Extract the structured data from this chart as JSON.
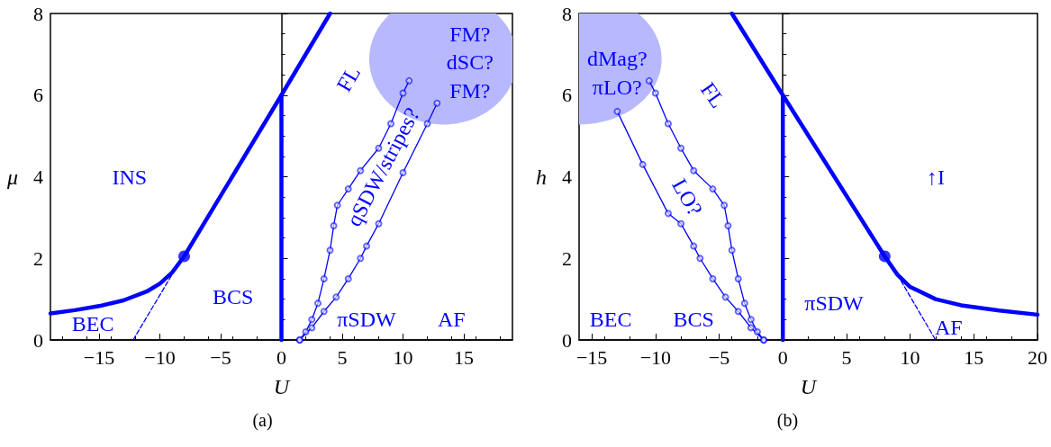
{
  "chart_data": [
    {
      "type": "line",
      "title": "(a)",
      "xlabel": "U",
      "ylabel": "μ",
      "xlim": [
        -19,
        19
      ],
      "ylim": [
        0,
        8
      ],
      "xticks": [
        -15,
        -10,
        -5,
        0,
        5,
        10,
        15
      ],
      "yticks": [
        0,
        2,
        4,
        6,
        8
      ],
      "grid": false,
      "series": [
        {
          "color": "#0000ff",
          "line_style": "solid",
          "x": [
            -19,
            -17,
            -15,
            -13,
            -11,
            -10,
            -9,
            -8,
            0,
            4
          ],
          "values": [
            0.65,
            0.73,
            0.83,
            0.97,
            1.2,
            1.38,
            1.65,
            2.05,
            6,
            8
          ]
        },
        {
          "color": "#0000ff",
          "line_style": "dashed",
          "x": [
            -12.2,
            -9
          ],
          "values": [
            0,
            1.6
          ]
        },
        {
          "color": "#0000ff",
          "line_style": "solid",
          "x": [
            0,
            0
          ],
          "values": [
            0,
            6
          ]
        },
        {
          "color": "#0000ff",
          "line_style": "solid",
          "marker": "circle",
          "x": [
            1.5,
            2,
            2.5,
            3,
            3.5,
            4,
            4.3,
            4.6,
            5.5,
            6.5,
            8,
            9,
            10,
            10.5
          ],
          "values": [
            0,
            0.2,
            0.5,
            0.9,
            1.5,
            2.2,
            2.8,
            3.3,
            3.7,
            4.15,
            4.7,
            5.3,
            6.05,
            6.35
          ]
        },
        {
          "color": "#0000ff",
          "line_style": "solid",
          "marker": "circle",
          "x": [
            1.5,
            2.5,
            3.5,
            4.5,
            5.5,
            6.5,
            7,
            8,
            10,
            12,
            12.8
          ],
          "values": [
            0,
            0.3,
            0.7,
            1.05,
            1.5,
            2.0,
            2.3,
            2.85,
            4.1,
            5.3,
            5.8
          ]
        },
        {
          "color": "#0000ff",
          "type": "scatter",
          "marker": "circle",
          "x": [
            -8
          ],
          "values": [
            2.05
          ]
        }
      ],
      "annotations": [
        "INS",
        "BEC",
        "BCS",
        "πSDW",
        "AF",
        "FL",
        "qSDW/stripes?",
        "FM?",
        "dSC?",
        "FM?"
      ]
    },
    {
      "type": "line",
      "title": "(b)",
      "xlabel": "U",
      "ylabel": "h",
      "xlim": [
        -16,
        20
      ],
      "ylim": [
        0,
        8
      ],
      "xticks": [
        -15,
        -10,
        -5,
        0,
        5,
        10,
        15,
        20
      ],
      "yticks": [
        0,
        2,
        4,
        6,
        8
      ],
      "grid": false,
      "series": [
        {
          "color": "#0000ff",
          "line_style": "solid",
          "x": [
            -4,
            0,
            8,
            9,
            10,
            12,
            14,
            17,
            20
          ],
          "values": [
            8,
            6,
            2.05,
            1.6,
            1.3,
            1.0,
            0.85,
            0.72,
            0.62
          ]
        },
        {
          "color": "#0000ff",
          "line_style": "dashed",
          "x": [
            9,
            12
          ],
          "values": [
            1.6,
            0
          ]
        },
        {
          "color": "#0000ff",
          "line_style": "solid",
          "x": [
            0,
            0
          ],
          "values": [
            0,
            6
          ]
        },
        {
          "color": "#0000ff",
          "line_style": "solid",
          "marker": "circle",
          "x": [
            -10.5,
            -10,
            -9,
            -8,
            -7,
            -5.5,
            -4.6,
            -4.3,
            -4,
            -3.5,
            -3,
            -2.5,
            -2,
            -1.5
          ],
          "values": [
            6.35,
            6.05,
            5.3,
            4.7,
            4.15,
            3.7,
            3.3,
            2.8,
            2.2,
            1.5,
            0.9,
            0.5,
            0.2,
            0
          ]
        },
        {
          "color": "#0000ff",
          "line_style": "solid",
          "marker": "circle",
          "x": [
            -13,
            -11,
            -9,
            -8,
            -7,
            -6.5,
            -5.5,
            -4.5,
            -3.5,
            -2.5,
            -1.5
          ],
          "values": [
            5.6,
            4.3,
            3.1,
            2.85,
            2.3,
            2.0,
            1.5,
            1.05,
            0.7,
            0.3,
            0
          ]
        },
        {
          "color": "#0000ff",
          "type": "scatter",
          "marker": "circle",
          "x": [
            8
          ],
          "values": [
            2.05
          ]
        }
      ],
      "annotations": [
        "dMag?",
        "πLO?",
        "FL",
        "LO?",
        "↑I",
        "BEC",
        "BCS",
        "πSDW",
        "AF"
      ]
    }
  ]
}
